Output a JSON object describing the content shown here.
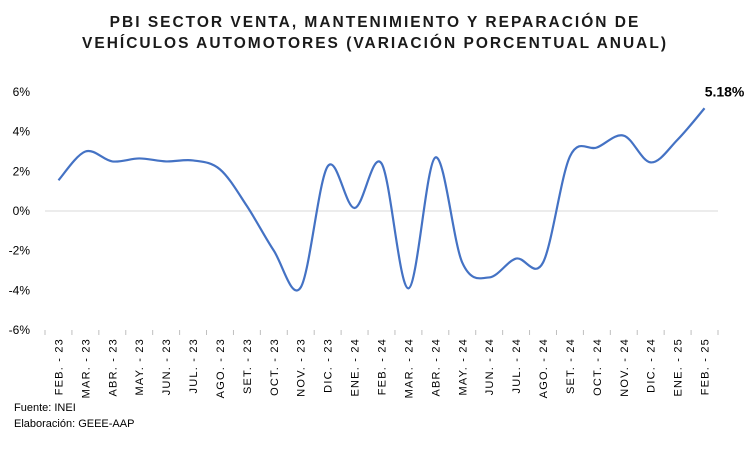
{
  "chart_data": {
    "type": "line",
    "title_lines": [
      "PBI SECTOR VENTA, MANTENIMIENTO Y REPARACIÓN DE",
      "VEHÍCULOS AUTOMOTORES (VARIACIÓN PORCENTUAL ANUAL)"
    ],
    "categories": [
      "FEB. - 23",
      "MAR. - 23",
      "ABR. - 23",
      "MAY. - 23",
      "JUN. - 23",
      "JUL. - 23",
      "AGO. - 23",
      "SET. - 23",
      "OCT. - 23",
      "NOV. - 23",
      "DIC. - 23",
      "ENE. - 24",
      "FEB. - 24",
      "MAR. - 24",
      "ABR. - 24",
      "MAY. - 24",
      "JUN. - 24",
      "JUL. - 24",
      "AGO. - 24",
      "SET. - 24",
      "OCT. - 24",
      "NOV. - 24",
      "DIC. - 24",
      "ENE. - 25",
      "FEB. - 25"
    ],
    "values": [
      1.55,
      3.0,
      2.5,
      2.65,
      2.5,
      2.55,
      2.1,
      0.25,
      -2.0,
      -3.85,
      2.25,
      0.15,
      2.4,
      -3.9,
      2.7,
      -2.6,
      -3.35,
      -2.4,
      -2.6,
      2.75,
      3.2,
      3.8,
      2.45,
      3.6,
      5.18
    ],
    "ylim": [
      -6,
      6
    ],
    "yticks": [
      -6,
      -4,
      -2,
      0,
      2,
      4,
      6
    ],
    "ytick_labels": [
      "-6%",
      "-4%",
      "-2%",
      "0%",
      "2%",
      "4%",
      "6%"
    ],
    "annotation": {
      "index": 24,
      "text": "5.18%"
    },
    "line_color": "#4472C4",
    "grid": false
  },
  "footnotes": {
    "source": "Fuente: INEI",
    "elaboration": "Elaboración: GEEE-AAP"
  }
}
